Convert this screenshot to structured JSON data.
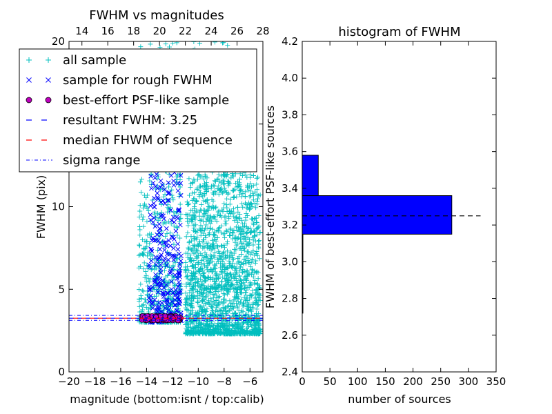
{
  "colors": {
    "all_sample": "#00bfbf",
    "rough_sample": "#0000ff",
    "psf_sample_fill": "#bf00bf",
    "resultant_line": "#0000ff",
    "median_line": "#ff0000",
    "sigma_line": "#0000ff",
    "histogram_bar": "#0000ff"
  },
  "chart_data": [
    {
      "type": "scatter",
      "title": "FWHM vs magnitudes",
      "xlabel": "magnitude (bottom:isnt / top:calib)",
      "ylabel": "FWHM (pix)",
      "xlim": [
        -20,
        -5
      ],
      "ylim": [
        0,
        20
      ],
      "x_ticks": [
        "−20",
        "−18",
        "−16",
        "−14",
        "−12",
        "−10",
        "−8",
        "−6"
      ],
      "x_tick_values": [
        -20,
        -18,
        -16,
        -14,
        -12,
        -10,
        -8,
        -6
      ],
      "top_xlim": [
        13,
        28
      ],
      "top_x_ticks": [
        "14",
        "16",
        "18",
        "20",
        "22",
        "24",
        "26",
        "28"
      ],
      "top_x_tick_values": [
        14,
        16,
        18,
        20,
        22,
        24,
        26,
        28
      ],
      "y_ticks": [
        "0",
        "5",
        "10",
        "15",
        "20"
      ],
      "y_tick_values": [
        0,
        5,
        10,
        15,
        20
      ],
      "grid": false,
      "legend_position": "upper-left",
      "legend": [
        {
          "label": "all sample",
          "marker": "plus"
        },
        {
          "label": "sample for rough FWHM",
          "marker": "x"
        },
        {
          "label": "best-effort PSF-like sample",
          "marker": "circle"
        },
        {
          "label": "resultant FWHM: 3.25",
          "marker": "dashed-line"
        },
        {
          "label": "median FHWM of sequence",
          "marker": "dashed-line-red"
        },
        {
          "label": "sigma range",
          "marker": "dashdot-line"
        }
      ],
      "series": [
        {
          "name": "all sample",
          "marker": "plus",
          "point_clusters": [
            {
              "x_range": [
                -14.6,
                -11.3
              ],
              "y_range": [
                3.0,
                20.0
              ],
              "count": 700
            },
            {
              "x_range": [
                -11.0,
                -5.2
              ],
              "y_range": [
                2.3,
                12.0
              ],
              "count": 1600
            },
            {
              "x_range": [
                -10.5,
                -6.0
              ],
              "y_range": [
                5.0,
                20.0
              ],
              "count": 350
            }
          ]
        },
        {
          "name": "sample for rough FWHM",
          "marker": "x",
          "point_clusters": [
            {
              "x_range": [
                -13.8,
                -11.3
              ],
              "y_range": [
                3.0,
                16.0
              ],
              "count": 300
            }
          ]
        },
        {
          "name": "best-effort PSF-like sample",
          "marker": "circle",
          "point_clusters": [
            {
              "x_range": [
                -14.4,
                -11.3
              ],
              "y_range": [
                3.1,
                3.4
              ],
              "count": 160
            }
          ]
        }
      ],
      "reference_lines": {
        "resultant_fwhm": 3.25,
        "median_fwhm": 3.25,
        "sigma_range": [
          3.12,
          3.42
        ]
      }
    },
    {
      "type": "bar",
      "orientation": "horizontal",
      "title": "histogram of FWHM",
      "xlabel": "number of sources",
      "ylabel": "FWHM of best-effort PSF-like sources",
      "xlim": [
        0,
        350
      ],
      "ylim": [
        2.4,
        4.2
      ],
      "x_ticks": [
        "0",
        "50",
        "100",
        "150",
        "200",
        "250",
        "300",
        "350"
      ],
      "x_tick_values": [
        0,
        50,
        100,
        150,
        200,
        250,
        300,
        350
      ],
      "y_ticks": [
        "2.4",
        "2.6",
        "2.8",
        "3.0",
        "3.2",
        "3.4",
        "3.6",
        "3.8",
        "4.0",
        "4.2"
      ],
      "y_tick_values": [
        2.4,
        2.6,
        2.8,
        3.0,
        3.2,
        3.4,
        3.6,
        3.8,
        4.0,
        4.2
      ],
      "grid": false,
      "bins": [
        {
          "from": 2.72,
          "to": 3.15,
          "count": 1
        },
        {
          "from": 3.15,
          "to": 3.36,
          "count": 270
        },
        {
          "from": 3.36,
          "to": 3.58,
          "count": 29
        }
      ],
      "reference_line": {
        "y": 3.25,
        "x_range": [
          0,
          322
        ]
      }
    }
  ]
}
